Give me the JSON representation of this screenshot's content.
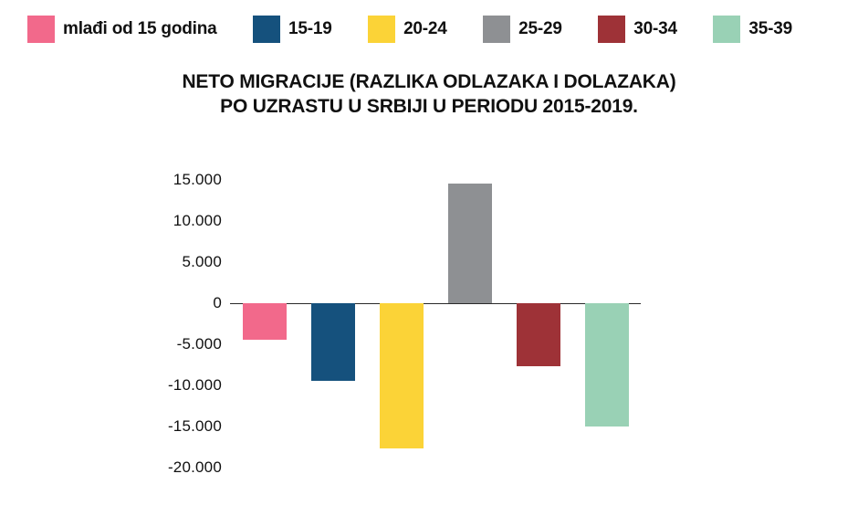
{
  "title": {
    "line1": "NETO MIGRACIJE (RAZLIKA ODLAZAKA I DOLAZAKA)",
    "line2": "PO UZRASTU U SRBIJI U PERIODU 2015-2019."
  },
  "legend": {
    "items": [
      {
        "label": "mlađi od 15 godina",
        "color": "#f2698b"
      },
      {
        "label": "15-19",
        "color": "#15517d"
      },
      {
        "label": "20-24",
        "color": "#fbd337"
      },
      {
        "label": "25-29",
        "color": "#8e9093"
      },
      {
        "label": "30-34",
        "color": "#9e3237"
      },
      {
        "label": "35-39",
        "color": "#99d1b5"
      }
    ]
  },
  "chart_data": {
    "type": "bar",
    "title": "NETO MIGRACIJE (RAZLIKA ODLAZAKA I DOLAZAKA) PO UZRASTU U SRBIJI U PERIODU 2015-2019.",
    "categories": [
      "mlađi od 15 godina",
      "15-19",
      "20-24",
      "25-29",
      "30-34",
      "35-39"
    ],
    "values": [
      -4500,
      -9500,
      -17700,
      14500,
      -7700,
      -15000
    ],
    "colors": [
      "#f2698b",
      "#15517d",
      "#fbd337",
      "#8e9093",
      "#9e3237",
      "#99d1b5"
    ],
    "y_ticks": [
      15000,
      10000,
      5000,
      0,
      -5000,
      -10000,
      -15000,
      -20000
    ],
    "y_tick_labels": [
      "15.000",
      "10.000",
      "5.000",
      "0",
      "-5.000",
      "-10.000",
      "-15.000",
      "-20.000"
    ],
    "ylim": [
      -21000,
      16500
    ],
    "xlabel": "",
    "ylabel": "",
    "grid": false,
    "legend_position": "top"
  }
}
